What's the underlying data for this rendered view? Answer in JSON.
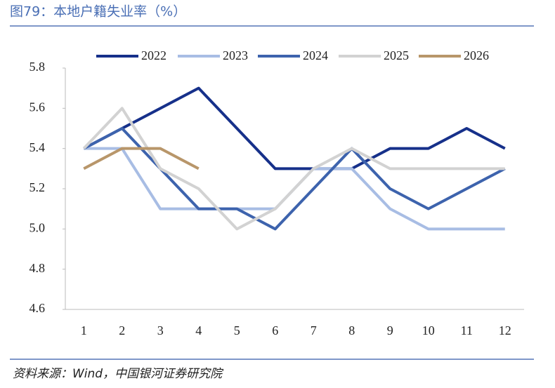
{
  "chart_data": {
    "type": "line",
    "title": "图79：本地户籍失业率（%）",
    "source": "资料来源：Wind，中国银河证券研究院",
    "categories": [
      "1",
      "2",
      "3",
      "4",
      "5",
      "6",
      "7",
      "8",
      "9",
      "10",
      "11",
      "12"
    ],
    "series": [
      {
        "name": "2022",
        "color": "#16308a",
        "values": [
          5.4,
          5.5,
          5.6,
          5.7,
          5.5,
          5.3,
          5.3,
          5.3,
          5.4,
          5.4,
          5.5,
          5.4
        ]
      },
      {
        "name": "2023",
        "color": "#a8bde4",
        "values": [
          5.4,
          5.4,
          5.1,
          5.1,
          5.1,
          5.1,
          5.3,
          5.3,
          5.1,
          5.0,
          5.0,
          5.0
        ]
      },
      {
        "name": "2024",
        "color": "#3d63ad",
        "values": [
          5.4,
          5.5,
          5.3,
          5.1,
          5.1,
          5.0,
          5.2,
          5.4,
          5.2,
          5.1,
          5.2,
          5.3
        ]
      },
      {
        "name": "2025",
        "color": "#d2d2d2",
        "values": [
          5.4,
          5.6,
          5.3,
          5.2,
          5.0,
          5.1,
          5.3,
          5.4,
          5.3,
          5.3,
          5.3,
          5.3
        ]
      },
      {
        "name": "2026",
        "color": "#b8966a",
        "values": [
          5.3,
          5.4,
          5.4,
          5.3,
          null,
          null,
          null,
          null,
          null,
          null,
          null,
          null
        ]
      }
    ],
    "ylim": [
      4.6,
      5.8
    ],
    "yticks": [
      4.6,
      4.8,
      {
        "value": 5.0,
        "label": "5.0"
      },
      5.2,
      5.4,
      5.6,
      5.8
    ],
    "grid": false,
    "legend": "top"
  }
}
